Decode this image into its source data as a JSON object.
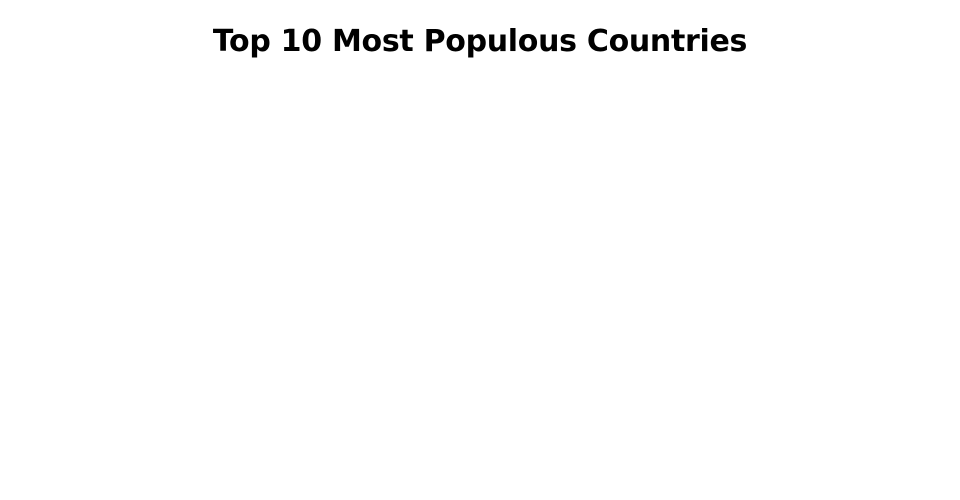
{
  "chart_data": {
    "type": "bar",
    "title": "Top 10 Most Populous Countries",
    "categories": [],
    "values": []
  }
}
